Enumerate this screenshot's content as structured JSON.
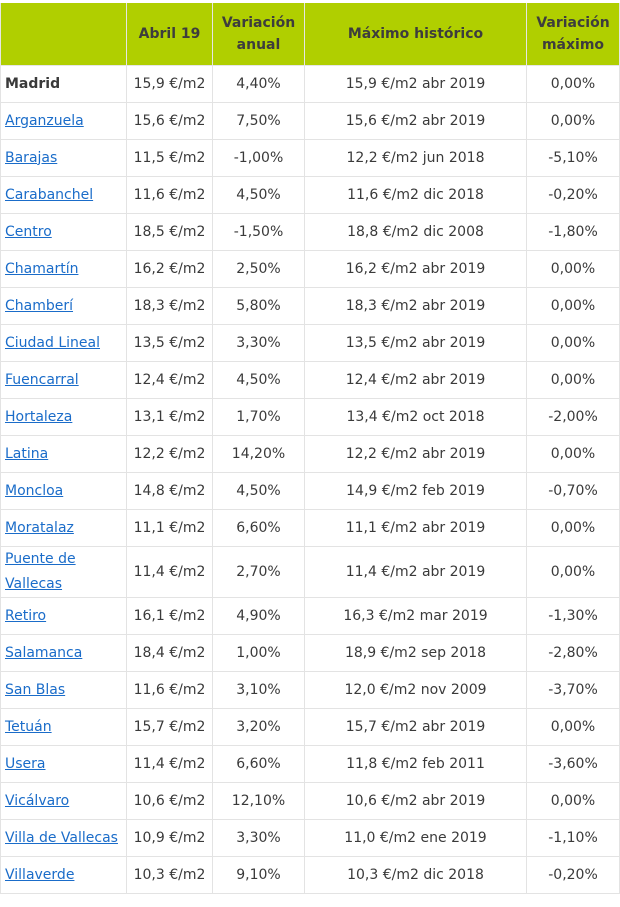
{
  "headers": [
    "",
    "Abril 19",
    "Variación anual",
    "Máximo histórico",
    "Variación máximo"
  ],
  "colors": {
    "header_bg": "#b0cf00",
    "link": "#1a6cc9"
  },
  "rows": [
    {
      "name": "Madrid",
      "bold": true,
      "price": "15,9 €/m2",
      "annual": "4,40%",
      "max": "15,9 €/m2 abr 2019",
      "var_max": "0,00%"
    },
    {
      "name": "Arganzuela",
      "price": "15,6 €/m2",
      "annual": "7,50%",
      "max": "15,6 €/m2 abr 2019",
      "var_max": "0,00%"
    },
    {
      "name": "Barajas",
      "price": "11,5 €/m2",
      "annual": "-1,00%",
      "max": "12,2 €/m2 jun 2018",
      "var_max": "-5,10%"
    },
    {
      "name": "Carabanchel",
      "price": "11,6 €/m2",
      "annual": "4,50%",
      "max": "11,6 €/m2 dic 2018",
      "var_max": "-0,20%"
    },
    {
      "name": "Centro",
      "price": "18,5 €/m2",
      "annual": "-1,50%",
      "max": "18,8 €/m2 dic 2008",
      "var_max": "-1,80%"
    },
    {
      "name": "Chamartín",
      "price": "16,2 €/m2",
      "annual": "2,50%",
      "max": "16,2 €/m2 abr 2019",
      "var_max": "0,00%"
    },
    {
      "name": "Chamberí",
      "price": "18,3 €/m2",
      "annual": "5,80%",
      "max": "18,3 €/m2 abr 2019",
      "var_max": "0,00%"
    },
    {
      "name": "Ciudad Lineal",
      "price": "13,5 €/m2",
      "annual": "3,30%",
      "max": "13,5 €/m2 abr 2019",
      "var_max": "0,00%"
    },
    {
      "name": "Fuencarral",
      "price": "12,4 €/m2",
      "annual": "4,50%",
      "max": "12,4 €/m2 abr 2019",
      "var_max": "0,00%"
    },
    {
      "name": "Hortaleza",
      "price": "13,1 €/m2",
      "annual": "1,70%",
      "max": "13,4 €/m2 oct 2018",
      "var_max": "-2,00%"
    },
    {
      "name": "Latina",
      "price": "12,2 €/m2",
      "annual": "14,20%",
      "max": "12,2 €/m2 abr 2019",
      "var_max": "0,00%"
    },
    {
      "name": "Moncloa",
      "price": "14,8 €/m2",
      "annual": "4,50%",
      "max": "14,9 €/m2 feb 2019",
      "var_max": "-0,70%"
    },
    {
      "name": "Moratalaz",
      "price": "11,1 €/m2",
      "annual": "6,60%",
      "max": "11,1 €/m2 abr 2019",
      "var_max": "0,00%"
    },
    {
      "name": "Puente de Vallecas",
      "price": "11,4 €/m2",
      "annual": "2,70%",
      "max": "11,4 €/m2 abr 2019",
      "var_max": "0,00%"
    },
    {
      "name": "Retiro",
      "price": "16,1 €/m2",
      "annual": "4,90%",
      "max": "16,3 €/m2 mar 2019",
      "var_max": "-1,30%"
    },
    {
      "name": "Salamanca",
      "price": "18,4 €/m2",
      "annual": "1,00%",
      "max": "18,9 €/m2 sep 2018",
      "var_max": "-2,80%"
    },
    {
      "name": "San Blas",
      "price": "11,6 €/m2",
      "annual": "3,10%",
      "max": "12,0 €/m2 nov 2009",
      "var_max": "-3,70%"
    },
    {
      "name": "Tetuán",
      "price": "15,7 €/m2",
      "annual": "3,20%",
      "max": "15,7 €/m2 abr 2019",
      "var_max": "0,00%"
    },
    {
      "name": "Usera",
      "price": "11,4 €/m2",
      "annual": "6,60%",
      "max": "11,8 €/m2 feb 2011",
      "var_max": "-3,60%"
    },
    {
      "name": "Vicálvaro",
      "price": "10,6 €/m2",
      "annual": "12,10%",
      "max": "10,6 €/m2 abr 2019",
      "var_max": "0,00%"
    },
    {
      "name": "Villa de Vallecas",
      "price": "10,9 €/m2",
      "annual": "3,30%",
      "max": "11,0 €/m2 ene 2019",
      "var_max": "-1,10%"
    },
    {
      "name": "Villaverde",
      "price": "10,3 €/m2",
      "annual": "9,10%",
      "max": "10,3 €/m2 dic 2018",
      "var_max": "-0,20%"
    }
  ]
}
